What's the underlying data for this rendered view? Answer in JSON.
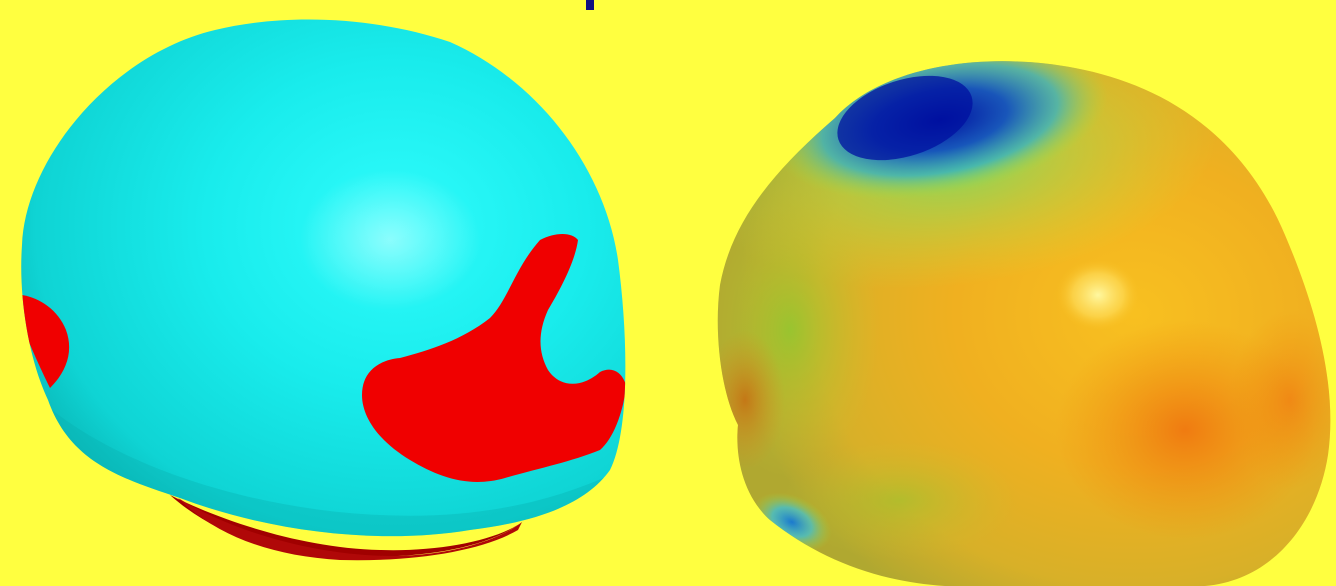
{
  "colors": {
    "background": "#ffff40",
    "top_marker": "#101080",
    "segmented_surface": "#19ecec",
    "segmented_region": "#f00000",
    "segmented_region_shadow": "#a00000"
  },
  "panels": [
    {
      "kind": "binary-segmented-surface",
      "surface_color": "#19ecec",
      "highlight_color": "#f00000"
    },
    {
      "kind": "continuous-colormap-surface",
      "colormap": [
        "#0018a0",
        "#1a70c8",
        "#40c8c8",
        "#a8e040",
        "#f0d010",
        "#f09010",
        "#fff080"
      ]
    }
  ]
}
